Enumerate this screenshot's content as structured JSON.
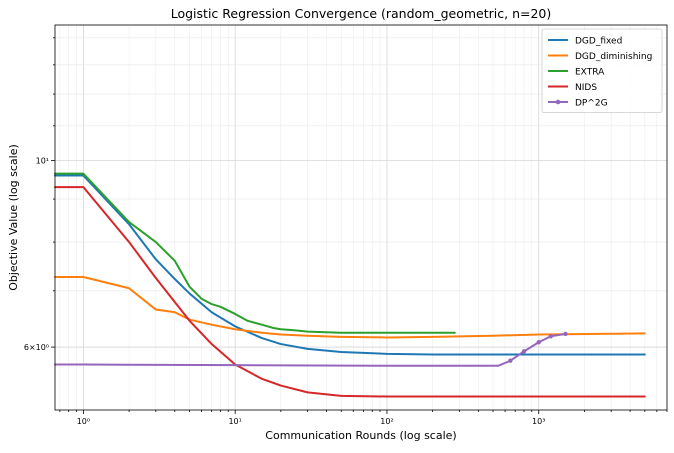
{
  "chart_data": {
    "type": "line",
    "title": "Logistic Regression Convergence (random_geometric, n=20)",
    "xlabel": "Communication Rounds (log scale)",
    "ylabel": "Objective Value (log scale)",
    "xscale": "log",
    "yscale": "log",
    "xlim": [
      0.65,
      7000
    ],
    "ylim": [
      5.05,
      14.5
    ],
    "grid": true,
    "legend_position": "top-right",
    "x_ticks": [
      {
        "value": 1,
        "label": "10⁰"
      },
      {
        "value": 10,
        "label": "10¹"
      },
      {
        "value": 100,
        "label": "10²"
      },
      {
        "value": 1000,
        "label": "10³"
      }
    ],
    "y_ticks": [
      {
        "value": 6,
        "label": "6×10⁰"
      },
      {
        "value": 10,
        "label": "10¹"
      }
    ],
    "series": [
      {
        "name": "DGD_fixed",
        "color": "#1f77b4",
        "marker": false,
        "x": [
          0.65,
          1,
          2,
          3,
          4,
          5,
          7,
          10,
          15,
          20,
          30,
          50,
          100,
          200,
          500,
          1000,
          5000
        ],
        "y": [
          9.6,
          9.6,
          8.4,
          7.63,
          7.23,
          6.95,
          6.6,
          6.35,
          6.15,
          6.05,
          5.97,
          5.92,
          5.89,
          5.88,
          5.88,
          5.88,
          5.88
        ]
      },
      {
        "name": "DGD_diminishing",
        "color": "#ff7f0e",
        "marker": false,
        "x": [
          0.65,
          1,
          2,
          3,
          4,
          5,
          7,
          10,
          15,
          20,
          30,
          50,
          100,
          200,
          500,
          1000,
          5000
        ],
        "y": [
          7.27,
          7.27,
          7.05,
          6.65,
          6.6,
          6.47,
          6.38,
          6.3,
          6.24,
          6.21,
          6.19,
          6.17,
          6.16,
          6.17,
          6.19,
          6.21,
          6.23
        ]
      },
      {
        "name": "EXTRA",
        "color": "#2ca02c",
        "marker": false,
        "x": [
          0.65,
          1,
          2,
          3,
          4,
          5,
          6,
          7,
          8,
          10,
          12,
          15,
          18,
          20,
          25,
          30,
          50,
          100,
          280
        ],
        "y": [
          9.65,
          9.65,
          8.45,
          8.0,
          7.6,
          7.08,
          6.85,
          6.75,
          6.7,
          6.57,
          6.45,
          6.38,
          6.32,
          6.3,
          6.28,
          6.26,
          6.24,
          6.24,
          6.24
        ]
      },
      {
        "name": "NIDS",
        "color": "#d62728",
        "marker": false,
        "x": [
          0.65,
          1,
          2,
          3,
          5,
          7,
          10,
          15,
          20,
          30,
          50,
          100,
          200,
          500,
          1000,
          5000
        ],
        "y": [
          9.3,
          9.3,
          8.0,
          7.25,
          6.45,
          6.05,
          5.72,
          5.5,
          5.4,
          5.3,
          5.25,
          5.24,
          5.24,
          5.24,
          5.24,
          5.24
        ]
      },
      {
        "name": "DP^2G",
        "color": "#9467bd",
        "marker": true,
        "x": [
          0.65,
          1,
          10,
          100,
          300,
          540,
          650,
          800,
          1000,
          1200,
          1500
        ],
        "y": [
          5.72,
          5.72,
          5.71,
          5.7,
          5.7,
          5.7,
          5.78,
          5.93,
          6.08,
          6.18,
          6.22
        ]
      }
    ]
  }
}
